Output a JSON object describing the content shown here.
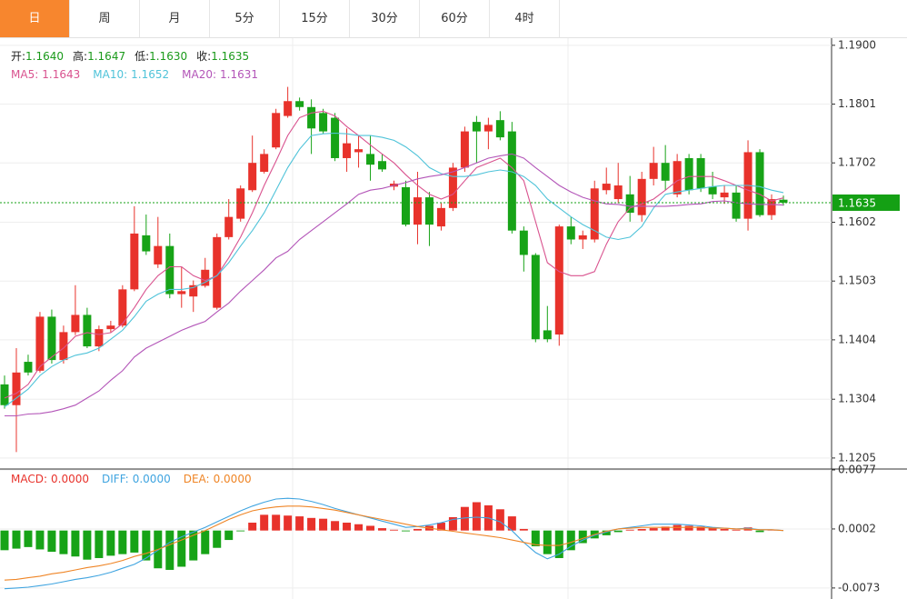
{
  "tabs": [
    "日",
    "周",
    "月",
    "5分",
    "15分",
    "30分",
    "60分",
    "4时"
  ],
  "active_tab": 0,
  "chart_data": [
    {
      "type": "candlestick",
      "info": [
        {
          "label": "开:",
          "text": "1.1640"
        },
        {
          "label": "高:",
          "text": "1.1647"
        },
        {
          "label": "低:",
          "text": "1.1630"
        },
        {
          "label": "收:",
          "text": "1.1635"
        }
      ],
      "info_color": "#1a9a1a",
      "up_color": "#e8322b",
      "down_color": "#17a317",
      "open": [
        1.1329,
        1.1294,
        1.1367,
        1.1352,
        1.1443,
        1.137,
        1.1417,
        1.1446,
        1.1393,
        1.1422,
        1.1428,
        1.1489,
        1.158,
        1.1531,
        1.1562,
        1.1481,
        1.1477,
        1.1495,
        1.1458,
        1.1577,
        1.1608,
        1.1656,
        1.1687,
        1.1728,
        1.1781,
        1.1806,
        1.1796,
        1.1786,
        1.1778,
        1.171,
        1.172,
        1.1717,
        1.1705,
        1.1662,
        1.1661,
        1.1598,
        1.1644,
        1.1595,
        1.1626,
        1.1694,
        1.1771,
        1.1755,
        1.1774,
        1.1755,
        1.1588,
        1.1547,
        1.142,
        1.1413,
        1.1595,
        1.1573,
        1.1573,
        1.1656,
        1.1641,
        1.1649,
        1.1614,
        1.1675,
        1.1702,
        1.1649,
        1.171,
        1.171,
        1.1662,
        1.1644,
        1.1652,
        1.1608,
        1.172,
        1.1614,
        1.164
      ],
      "high": [
        1.1344,
        1.139,
        1.1379,
        1.1451,
        1.1455,
        1.1428,
        1.1496,
        1.1458,
        1.1428,
        1.1436,
        1.1496,
        1.1629,
        1.1615,
        1.1611,
        1.1583,
        1.1527,
        1.1504,
        1.1542,
        1.1583,
        1.1641,
        1.1664,
        1.1748,
        1.1725,
        1.1793,
        1.183,
        1.1812,
        1.1809,
        1.1793,
        1.1786,
        1.176,
        1.1748,
        1.1748,
        1.1717,
        1.1672,
        1.1672,
        1.1687,
        1.1653,
        1.1634,
        1.1702,
        1.1763,
        1.1781,
        1.1778,
        1.1789,
        1.1771,
        1.1595,
        1.155,
        1.1461,
        1.1598,
        1.1611,
        1.1588,
        1.1672,
        1.1694,
        1.1702,
        1.168,
        1.1687,
        1.1729,
        1.1732,
        1.1717,
        1.1717,
        1.1717,
        1.1687,
        1.1664,
        1.1664,
        1.174,
        1.1725,
        1.1649,
        1.1647
      ],
      "low": [
        1.1288,
        1.1215,
        1.1344,
        1.1349,
        1.1364,
        1.1364,
        1.1412,
        1.139,
        1.1385,
        1.1416,
        1.1425,
        1.1486,
        1.1547,
        1.1525,
        1.1474,
        1.1458,
        1.1451,
        1.1492,
        1.1455,
        1.1573,
        1.1603,
        1.1653,
        1.1684,
        1.1725,
        1.1778,
        1.179,
        1.1717,
        1.1751,
        1.1705,
        1.1687,
        1.1694,
        1.1672,
        1.1687,
        1.1656,
        1.1595,
        1.1565,
        1.1562,
        1.1588,
        1.1621,
        1.1687,
        1.1702,
        1.1725,
        1.174,
        1.1583,
        1.1519,
        1.14,
        1.14,
        1.1394,
        1.1565,
        1.1557,
        1.1568,
        1.1649,
        1.1634,
        1.1603,
        1.1603,
        1.1664,
        1.1656,
        1.1644,
        1.1649,
        1.1653,
        1.1641,
        1.1633,
        1.1603,
        1.1588,
        1.1611,
        1.1606,
        1.163
      ],
      "close": [
        1.1294,
        1.1349,
        1.1349,
        1.1443,
        1.137,
        1.1417,
        1.1446,
        1.1393,
        1.1422,
        1.1428,
        1.1489,
        1.1583,
        1.1553,
        1.1562,
        1.1481,
        1.1486,
        1.1496,
        1.1522,
        1.1577,
        1.1611,
        1.1659,
        1.1702,
        1.1717,
        1.1786,
        1.1806,
        1.1796,
        1.176,
        1.1755,
        1.171,
        1.1735,
        1.1725,
        1.1699,
        1.1691,
        1.1667,
        1.1598,
        1.1644,
        1.1598,
        1.1626,
        1.1694,
        1.1755,
        1.1755,
        1.1766,
        1.1745,
        1.1588,
        1.1547,
        1.1405,
        1.1405,
        1.1595,
        1.1573,
        1.158,
        1.1659,
        1.1667,
        1.1664,
        1.1618,
        1.1675,
        1.1702,
        1.1672,
        1.1705,
        1.1656,
        1.1659,
        1.1649,
        1.1652,
        1.1608,
        1.172,
        1.1614,
        1.1641,
        1.1635
      ],
      "series": [
        {
          "name": "MA5:",
          "latest": "1.1643",
          "color": "#d9538f",
          "values": [
            1.1306,
            1.1314,
            1.1329,
            1.1359,
            1.1375,
            1.139,
            1.141,
            1.1416,
            1.1413,
            1.1416,
            1.1431,
            1.1458,
            1.1489,
            1.1512,
            1.1527,
            1.1527,
            1.1512,
            1.1504,
            1.1512,
            1.1542,
            1.1577,
            1.1618,
            1.1664,
            1.1705,
            1.1748,
            1.1778,
            1.1786,
            1.1789,
            1.1781,
            1.1763,
            1.1748,
            1.1732,
            1.1717,
            1.1702,
            1.1682,
            1.1664,
            1.1649,
            1.1641,
            1.1649,
            1.1672,
            1.1694,
            1.1702,
            1.171,
            1.1694,
            1.1672,
            1.1603,
            1.1534,
            1.1519,
            1.1512,
            1.1512,
            1.1519,
            1.1565,
            1.1603,
            1.1626,
            1.1633,
            1.1641,
            1.1656,
            1.1672,
            1.1679,
            1.1679,
            1.1679,
            1.1672,
            1.1664,
            1.1656,
            1.1649,
            1.1638,
            1.1643
          ]
        },
        {
          "name": "MA10:",
          "latest": "1.1652",
          "color": "#4fc3d9",
          "values": [
            1.1291,
            1.1306,
            1.1321,
            1.1344,
            1.1359,
            1.137,
            1.1378,
            1.1382,
            1.139,
            1.1405,
            1.142,
            1.1443,
            1.1469,
            1.1481,
            1.1489,
            1.1489,
            1.1492,
            1.1501,
            1.1512,
            1.1534,
            1.1562,
            1.1588,
            1.1618,
            1.1656,
            1.1694,
            1.1725,
            1.1748,
            1.1751,
            1.1752,
            1.1751,
            1.1748,
            1.1748,
            1.1745,
            1.174,
            1.1729,
            1.1714,
            1.1694,
            1.1684,
            1.1679,
            1.1679,
            1.1682,
            1.1687,
            1.169,
            1.1687,
            1.1679,
            1.1664,
            1.1641,
            1.1626,
            1.1611,
            1.1598,
            1.1588,
            1.1577,
            1.1573,
            1.1577,
            1.1595,
            1.1626,
            1.1649,
            1.1653,
            1.1656,
            1.1659,
            1.1662,
            1.1664,
            1.1664,
            1.1664,
            1.1662,
            1.1656,
            1.1652
          ]
        },
        {
          "name": "MA20:",
          "latest": "1.1631",
          "color": "#b355b8",
          "values": [
            1.1276,
            1.1276,
            1.1279,
            1.128,
            1.1283,
            1.1288,
            1.1294,
            1.1306,
            1.1318,
            1.1336,
            1.1352,
            1.1375,
            1.139,
            1.14,
            1.141,
            1.142,
            1.1428,
            1.1435,
            1.1451,
            1.1466,
            1.1486,
            1.1504,
            1.1522,
            1.1542,
            1.1553,
            1.1573,
            1.1588,
            1.1603,
            1.1618,
            1.1633,
            1.1649,
            1.1656,
            1.1659,
            1.1664,
            1.1669,
            1.1675,
            1.1679,
            1.1682,
            1.1687,
            1.1694,
            1.1702,
            1.171,
            1.1714,
            1.1717,
            1.171,
            1.1694,
            1.1679,
            1.1664,
            1.1653,
            1.1644,
            1.1638,
            1.1633,
            1.1632,
            1.1629,
            1.1629,
            1.1629,
            1.1629,
            1.163,
            1.1632,
            1.1633,
            1.1637,
            1.1638,
            1.1635,
            1.1633,
            1.1632,
            1.1632,
            1.1631
          ]
        }
      ],
      "last_price": 1.1635,
      "last_price_color": "#14a014",
      "ylim": [
        1.1188,
        1.1912
      ],
      "yticks": [
        {
          "value": 1.19,
          "label": "1.1900"
        },
        1.1801,
        1.1702,
        1.1602,
        1.1503,
        1.1404,
        1.1304,
        1.1205
      ],
      "grid": true
    },
    {
      "type": "bar",
      "series": [
        {
          "name": "MACD:",
          "latest": "0.0000",
          "type": "bar",
          "color": "#e8322b",
          "negative_color": "#17a317",
          "values": [
            -0.0025,
            -0.0023,
            -0.0021,
            -0.0024,
            -0.0027,
            -0.003,
            -0.0033,
            -0.0037,
            -0.0035,
            -0.0032,
            -0.003,
            -0.0028,
            -0.0038,
            -0.0048,
            -0.005,
            -0.0046,
            -0.0038,
            -0.003,
            -0.0022,
            -0.0012,
            -0.0001,
            0.001,
            0.002,
            0.002,
            0.0019,
            0.0018,
            0.0016,
            0.0015,
            0.0012,
            0.001,
            0.0008,
            0.0006,
            0.0003,
            0.0001,
            -0.0001,
            0.0002,
            0.0006,
            0.001,
            0.0017,
            0.003,
            0.0036,
            0.0032,
            0.0027,
            0.0018,
            0.0002,
            -0.002,
            -0.003,
            -0.0035,
            -0.0025,
            -0.0016,
            -0.001,
            -0.0006,
            -0.0002,
            0.0001,
            0.0002,
            0.0003,
            0.0005,
            0.0007,
            0.0006,
            0.0005,
            0.0004,
            0.0002,
            0.0001,
            0.0004,
            -0.0002,
            0.0001,
            0
          ]
        },
        {
          "name": "DIFF:",
          "latest": "0.0000",
          "type": "line",
          "color": "#3fa4e0",
          "values": [
            -0.0074,
            -0.0073,
            -0.0072,
            -0.007,
            -0.0068,
            -0.0065,
            -0.0062,
            -0.006,
            -0.0057,
            -0.0053,
            -0.0048,
            -0.0043,
            -0.0035,
            -0.0025,
            -0.0015,
            -0.0008,
            -0.0002,
            0.0004,
            0.0011,
            0.0018,
            0.0025,
            0.0031,
            0.0036,
            0.004,
            0.0041,
            0.004,
            0.0037,
            0.0033,
            0.0028,
            0.0024,
            0.002,
            0.0016,
            0.0012,
            0.0008,
            0.0004,
            0.0005,
            0.0007,
            0.001,
            0.0014,
            0.0016,
            0.0017,
            0.0016,
            0.0011,
            0,
            -0.0015,
            -0.0028,
            -0.0036,
            -0.003,
            -0.002,
            -0.0012,
            -0.0006,
            -0.0002,
            0.0002,
            0.0004,
            0.0006,
            0.0008,
            0.0008,
            0.0008,
            0.0007,
            0.0006,
            0.0004,
            0.0003,
            0.0002,
            0.0003,
            0.0001,
            0.0001,
            0
          ]
        },
        {
          "name": "DEA:",
          "latest": "0.0000",
          "type": "line",
          "color": "#ef8526",
          "values": [
            -0.0063,
            -0.0062,
            -0.006,
            -0.0058,
            -0.0055,
            -0.0053,
            -0.005,
            -0.0047,
            -0.0045,
            -0.0042,
            -0.0038,
            -0.0033,
            -0.0029,
            -0.0024,
            -0.0018,
            -0.0012,
            -0.0006,
            0,
            0.0007,
            0.0014,
            0.002,
            0.0025,
            0.0028,
            0.003,
            0.0031,
            0.0031,
            0.003,
            0.0028,
            0.0026,
            0.0023,
            0.002,
            0.0017,
            0.0014,
            0.0011,
            0.0008,
            0.0005,
            0.0003,
            0.0001,
            -0.0001,
            -0.0003,
            -0.0005,
            -0.0007,
            -0.0009,
            -0.0012,
            -0.0015,
            -0.0018,
            -0.0019,
            -0.0019,
            -0.0015,
            -0.001,
            -0.0005,
            -0.0001,
            0.0002,
            0.0003,
            0.0004,
            0.0004,
            0.0004,
            0.0004,
            0.0004,
            0.0004,
            0.0003,
            0.0003,
            0.0002,
            0.0002,
            0.0001,
            0.0001,
            0
          ]
        }
      ],
      "ylim": [
        -0.0087,
        0.0077
      ],
      "yticks": [
        0.0077,
        0.0002,
        -0.0073
      ],
      "grid": true
    }
  ]
}
